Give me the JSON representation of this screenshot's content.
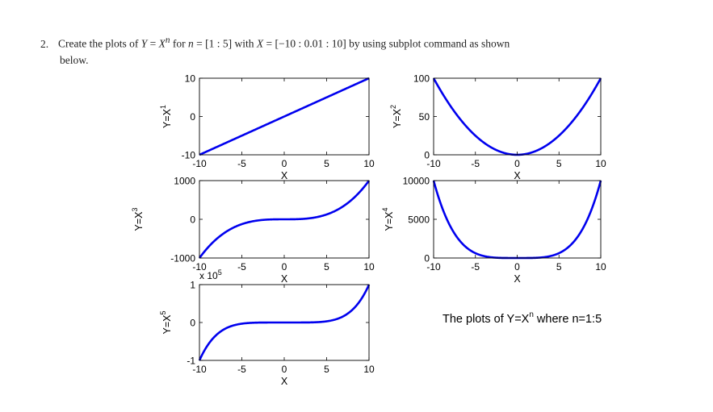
{
  "instruction": {
    "number": "2.",
    "line1_a": "Create the plots of ",
    "math_y": "Y",
    "eq1": " = ",
    "math_x": "X",
    "exp_n": "n",
    "line1_b": " for ",
    "math_n": "n",
    "eq2": " = [1 : 5] with ",
    "math_x2": "X",
    "eq3": " = [−10 : 0.01 : 10] by using subplot command as shown",
    "line2": "below."
  },
  "caption": {
    "text": "The plots of Y=X",
    "sup": "n",
    "suffix": " where n=1:5"
  },
  "chart_data": [
    {
      "type": "line",
      "xlabel": "X",
      "ylabel": "Y=X",
      "ylabel_sup": "1",
      "exponent": 1,
      "xlim": [
        -10,
        10
      ],
      "ylim": [
        -10,
        10
      ],
      "xticks": [
        -10,
        -5,
        0,
        5,
        10
      ],
      "xtick_labels": [
        "-10",
        "-5",
        "0",
        "5",
        "10"
      ],
      "yticks": [
        -10,
        0,
        10
      ],
      "ytick_labels": [
        "-10",
        "0",
        "10"
      ],
      "scale_label": "",
      "line_color": "#0000ee",
      "series": [
        {
          "x": [
            -10,
            -5,
            0,
            5,
            10
          ],
          "y": [
            -10,
            -5,
            0,
            5,
            10
          ]
        }
      ]
    },
    {
      "type": "line",
      "xlabel": "X",
      "ylabel": "Y=X",
      "ylabel_sup": "2",
      "exponent": 2,
      "xlim": [
        -10,
        10
      ],
      "ylim": [
        0,
        100
      ],
      "xticks": [
        -10,
        -5,
        0,
        5,
        10
      ],
      "xtick_labels": [
        "-10",
        "-5",
        "0",
        "5",
        "10"
      ],
      "yticks": [
        0,
        50,
        100
      ],
      "ytick_labels": [
        "0",
        "50",
        "100"
      ],
      "scale_label": "",
      "line_color": "#0000ee",
      "series": [
        {
          "x": [
            -10,
            -5,
            0,
            5,
            10
          ],
          "y": [
            100,
            25,
            0,
            25,
            100
          ]
        }
      ]
    },
    {
      "type": "line",
      "xlabel": "X",
      "ylabel": "Y=X",
      "ylabel_sup": "3",
      "exponent": 3,
      "xlim": [
        -10,
        10
      ],
      "ylim": [
        -1000,
        1000
      ],
      "xticks": [
        -10,
        -5,
        0,
        5,
        10
      ],
      "xtick_labels": [
        "-10",
        "-5",
        "0",
        "5",
        "10"
      ],
      "yticks": [
        -1000,
        0,
        1000
      ],
      "ytick_labels": [
        "-1000",
        "0",
        "1000"
      ],
      "scale_label": "",
      "line_color": "#0000ee",
      "series": [
        {
          "x": [
            -10,
            -5,
            0,
            5,
            10
          ],
          "y": [
            -1000,
            -125,
            0,
            125,
            1000
          ]
        }
      ]
    },
    {
      "type": "line",
      "xlabel": "X",
      "ylabel": "Y=X",
      "ylabel_sup": "4",
      "exponent": 4,
      "xlim": [
        -10,
        10
      ],
      "ylim": [
        0,
        10000
      ],
      "xticks": [
        -10,
        -5,
        0,
        5,
        10
      ],
      "xtick_labels": [
        "-10",
        "-5",
        "0",
        "5",
        "10"
      ],
      "yticks": [
        0,
        5000,
        10000
      ],
      "ytick_labels": [
        "0",
        "5000",
        "10000"
      ],
      "scale_label": "",
      "line_color": "#0000ee",
      "series": [
        {
          "x": [
            -10,
            -5,
            0,
            5,
            10
          ],
          "y": [
            10000,
            625,
            0,
            625,
            10000
          ]
        }
      ]
    },
    {
      "type": "line",
      "xlabel": "X",
      "ylabel": "Y=X",
      "ylabel_sup": "5",
      "exponent": 5,
      "xlim": [
        -10,
        10
      ],
      "ylim": [
        -100000,
        100000
      ],
      "xticks": [
        -10,
        -5,
        0,
        5,
        10
      ],
      "xtick_labels": [
        "-10",
        "-5",
        "0",
        "5",
        "10"
      ],
      "yticks": [
        -100000,
        0,
        100000
      ],
      "ytick_labels": [
        "-1",
        "0",
        "1"
      ],
      "scale_label": "x 10",
      "scale_sup": "5",
      "line_color": "#0000ee",
      "series": [
        {
          "x": [
            -10,
            -5,
            0,
            5,
            10
          ],
          "y": [
            -100000,
            -3125,
            0,
            3125,
            100000
          ]
        }
      ]
    }
  ]
}
